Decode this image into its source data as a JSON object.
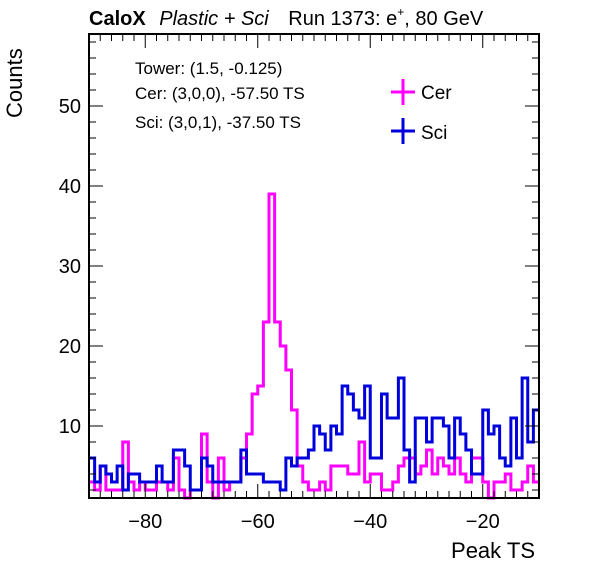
{
  "header": {
    "brand": "CaloX",
    "config": "Plastic + Sci",
    "run": "Run 1373: e",
    "run_sup": "+",
    "run_energy": ", 80 GeV"
  },
  "info": {
    "tower": "Tower: (1.5, -0.125)",
    "cer": "Cer: (3,0,0), -57.50 TS",
    "sci": "Sci: (3,0,1), -37.50 TS"
  },
  "chart_data": {
    "type": "histogram",
    "xlabel": "Peak TS",
    "ylabel": "Counts",
    "xlim": [
      -90,
      -10
    ],
    "ylim": [
      1,
      59
    ],
    "x_ticks": [
      -80,
      -60,
      -40,
      -20
    ],
    "y_ticks": [
      10,
      20,
      30,
      40,
      50
    ],
    "bin_width": 1,
    "bin_edges_start": -90,
    "legend_placement": "top-right",
    "series": [
      {
        "name": "Cer",
        "color": "#ff00ff",
        "values": [
          3,
          2,
          5,
          2,
          2,
          2,
          8,
          3,
          2,
          3,
          2,
          2,
          3,
          3,
          2,
          6,
          2,
          1,
          2,
          2,
          9,
          3,
          1,
          6,
          2,
          3,
          3,
          6,
          9,
          14,
          15,
          23,
          39,
          23,
          20,
          17,
          12,
          5,
          3,
          2,
          2,
          3,
          2,
          5,
          5,
          5,
          4,
          4,
          8,
          3,
          4,
          4,
          2,
          2,
          3,
          5,
          6,
          6,
          4,
          5,
          7,
          4,
          6,
          5,
          4,
          6,
          4,
          3,
          6,
          6,
          3,
          1,
          3,
          3,
          4,
          2,
          2,
          3,
          5,
          3
        ]
      },
      {
        "name": "Sci",
        "color": "#0000dd",
        "values": [
          6,
          3,
          5,
          4,
          3,
          5,
          2,
          4,
          4,
          3,
          3,
          3,
          5,
          3,
          3,
          7,
          7,
          5,
          2,
          2,
          6,
          5,
          3,
          3,
          3,
          3,
          3,
          7,
          4,
          4,
          4,
          3,
          3,
          3,
          2,
          6,
          5,
          6,
          6,
          7,
          10,
          9,
          7,
          10,
          9,
          15,
          14,
          12,
          11,
          15,
          6,
          6,
          14,
          11,
          11,
          16,
          7,
          3,
          11,
          11,
          8,
          11,
          11,
          10,
          6,
          11,
          9,
          7,
          4,
          4,
          12,
          9,
          10,
          6,
          5,
          11,
          6,
          16,
          8,
          12
        ]
      }
    ]
  }
}
